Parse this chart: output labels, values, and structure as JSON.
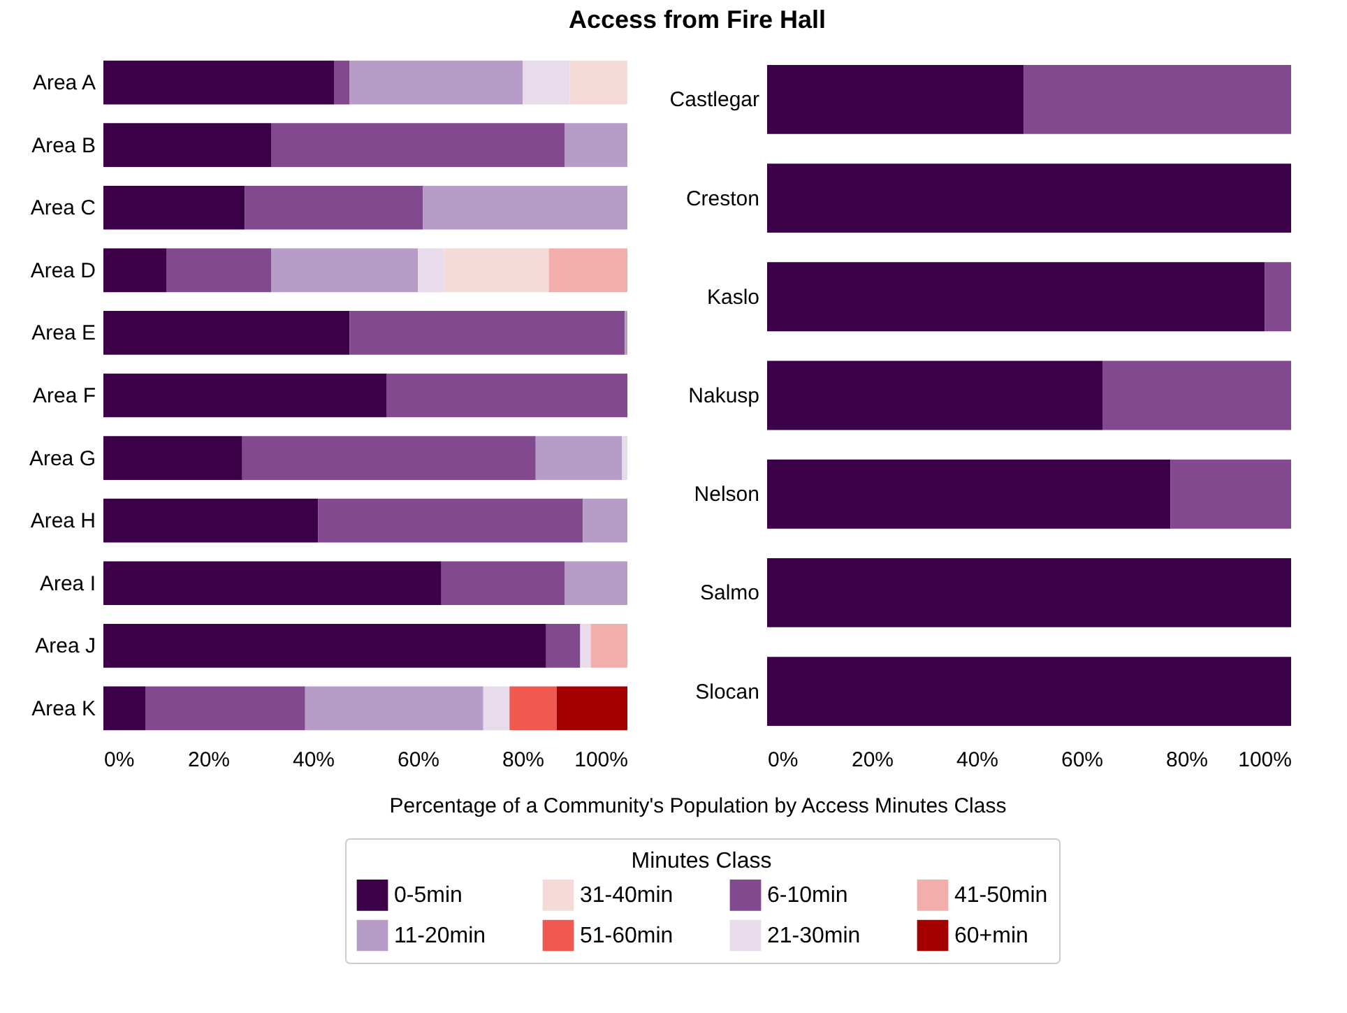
{
  "chart_data": [
    {
      "type": "bar",
      "title": "Access from Fire Hall",
      "xlabel": "Percentage of a Community's Population by Access Minutes Class",
      "legend_title": "Minutes Class",
      "legend": "bottom",
      "orientation": "horizontal",
      "stacked": true,
      "categories": [
        "Area A",
        "Area B",
        "Area C",
        "Area D",
        "Area E",
        "Area F",
        "Area G",
        "Area H",
        "Area I",
        "Area J",
        "Area K"
      ],
      "xlim": [
        0,
        100
      ],
      "xticks": [
        {
          "value": 0,
          "label": "0%"
        },
        {
          "value": 20,
          "label": "20%"
        },
        {
          "value": 40,
          "label": "40%"
        },
        {
          "value": 60,
          "label": "60%"
        },
        {
          "value": 80,
          "label": "80%"
        },
        {
          "value": 100,
          "label": "100%"
        }
      ],
      "series": [
        {
          "name": "0-5min",
          "color": "#3c0048",
          "values": [
            44,
            32,
            27,
            12,
            47,
            54,
            26.5,
            41,
            64.5,
            84.5,
            8
          ]
        },
        {
          "name": "6-10min",
          "color": "#82498f",
          "values": [
            3,
            56,
            34,
            20,
            52.5,
            46,
            56,
            50.5,
            23.5,
            6.5,
            30.5
          ]
        },
        {
          "name": "11-20min",
          "color": "#b89cc8",
          "values": [
            33,
            12,
            39,
            28,
            0.5,
            null,
            16.5,
            8.5,
            12,
            null,
            34
          ]
        },
        {
          "name": "21-30min",
          "color": "#e8dbeb",
          "values": [
            9,
            null,
            null,
            5,
            null,
            null,
            1,
            null,
            null,
            2,
            5
          ]
        },
        {
          "name": "31-40min",
          "color": "#f5dbd7",
          "values": [
            11,
            null,
            null,
            20,
            null,
            null,
            null,
            null,
            null,
            null,
            null
          ]
        },
        {
          "name": "41-50min",
          "color": "#f2aeab",
          "values": [
            null,
            null,
            null,
            15,
            null,
            null,
            null,
            null,
            null,
            7,
            null
          ]
        },
        {
          "name": "51-60min",
          "color": "#ef5950",
          "values": [
            null,
            null,
            null,
            null,
            null,
            null,
            null,
            null,
            null,
            null,
            9
          ]
        },
        {
          "name": "60+min",
          "color": "#a50000",
          "values": [
            null,
            null,
            null,
            null,
            null,
            null,
            null,
            null,
            null,
            null,
            13.5
          ]
        }
      ]
    },
    {
      "type": "bar",
      "orientation": "horizontal",
      "stacked": true,
      "categories": [
        "Castlegar",
        "Creston",
        "Kaslo",
        "Nakusp",
        "Nelson",
        "Salmo",
        "Slocan"
      ],
      "xlim": [
        0,
        100
      ],
      "xticks": [
        {
          "value": 0,
          "label": "0%"
        },
        {
          "value": 20,
          "label": "20%"
        },
        {
          "value": 40,
          "label": "40%"
        },
        {
          "value": 60,
          "label": "60%"
        },
        {
          "value": 80,
          "label": "80%"
        },
        {
          "value": 100,
          "label": "100%"
        }
      ],
      "series": [
        {
          "color": "#3c0048",
          "values": [
            49,
            100,
            95,
            64,
            77,
            100,
            100
          ]
        },
        {
          "color": "#82498f",
          "values": [
            51,
            null,
            5,
            36,
            23,
            null,
            null
          ]
        }
      ]
    }
  ]
}
